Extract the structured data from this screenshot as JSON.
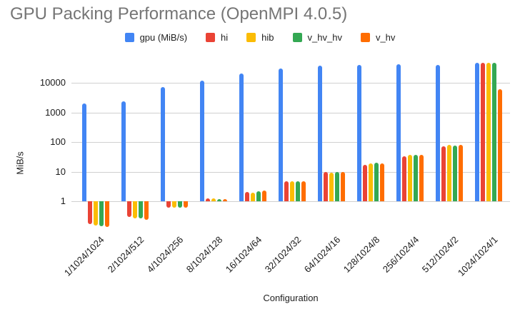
{
  "chart_data": {
    "type": "bar",
    "title": "GPU Packing Performance (OpenMPI 4.0.5)",
    "xlabel": "Configuration",
    "ylabel": "MiB/s",
    "y_scale": "log",
    "y_ticks": [
      1,
      10,
      100,
      1000,
      10000
    ],
    "ylim": [
      0.1,
      60000
    ],
    "grid": true,
    "legend_position": "top",
    "categories": [
      "1/1024/1024",
      "2/1024/512",
      "4/1024/256",
      "8/1024/128",
      "16/1024/64",
      "32/1024/32",
      "64/1024/16",
      "128/1024/8",
      "256/1024/4",
      "512/1024/2",
      "1024/1024/1"
    ],
    "series": [
      {
        "name": "gpu (MiB/s)",
        "color": "#4285F4",
        "values": [
          2000,
          2400,
          7200,
          11500,
          21000,
          31000,
          37000,
          40000,
          42000,
          41000,
          48000
        ]
      },
      {
        "name": "hi",
        "color": "#EA4335",
        "values": [
          0.17,
          0.3,
          0.62,
          1.25,
          2.1,
          4.7,
          9.6,
          17,
          33,
          72,
          48000
        ]
      },
      {
        "name": "hib",
        "color": "#FBBC04",
        "values": [
          0.15,
          0.26,
          0.62,
          1.25,
          2.0,
          4.7,
          9.4,
          19,
          36,
          80,
          46000
        ]
      },
      {
        "name": "v_hv_hv",
        "color": "#34A853",
        "values": [
          0.145,
          0.26,
          0.6,
          1.2,
          2.2,
          4.8,
          9.8,
          19.5,
          36,
          76,
          48000
        ]
      },
      {
        "name": "v_hv",
        "color": "#FF6D01",
        "values": [
          0.135,
          0.24,
          0.6,
          1.2,
          2.25,
          4.8,
          9.8,
          19,
          37,
          80,
          6100
        ]
      }
    ]
  }
}
